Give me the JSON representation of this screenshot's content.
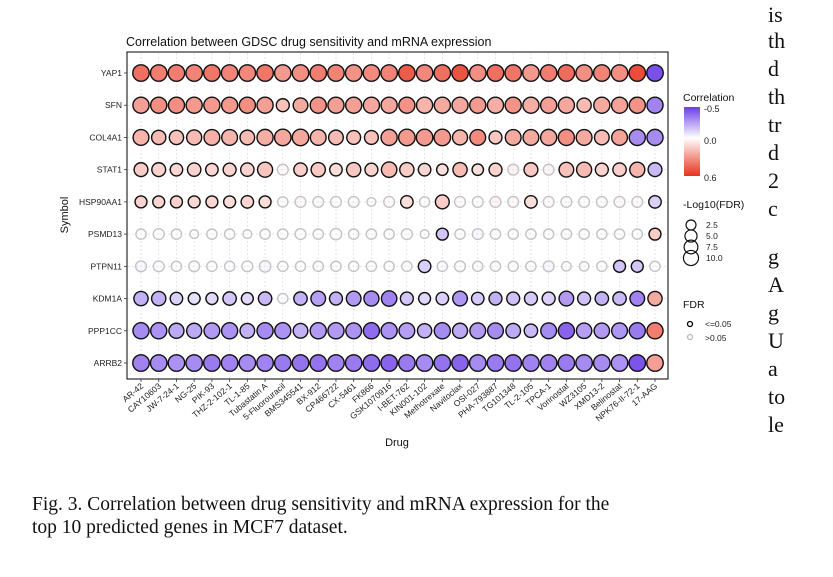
{
  "chart_data": {
    "type": "scatter",
    "subtype": "bubble-grid",
    "title": "Correlation between GDSC drug sensitivity and mRNA expression",
    "xlabel": "Drug",
    "ylabel": "Symbol",
    "x": [
      "AR-42",
      "CAY10603",
      "JW-7-24-1",
      "NG-25",
      "PIK-93",
      "THZ-2-102-1",
      "TL-1-85",
      "Tubastatin A",
      "5-Fluorouracil",
      "BMS345541",
      "BX-912",
      "CP466722",
      "CX-5461",
      "FK866",
      "GSK1070916",
      "I-BET-762",
      "KIN001-102",
      "Methotrexate",
      "Navitoclax",
      "OSI-027",
      "PHA-793887",
      "TG101348",
      "TL-2-105",
      "TPCA-1",
      "Vorinostat",
      "WZ3105",
      "XMD13-2",
      "Belinostat",
      "NPK76-II-72-1",
      "17-AAG"
    ],
    "y": [
      "YAP1",
      "SFN",
      "COL4A1",
      "STAT1",
      "HSP90AA1",
      "PSMD13",
      "PTPN11",
      "KDM1A",
      "PPP1CC",
      "ARRB2"
    ],
    "color_scale": {
      "title": "Correlation",
      "min": -0.5,
      "mid": 0.0,
      "max": 0.6,
      "ticks": [
        "-0.5",
        "0.0",
        "0.6"
      ],
      "low_color": "#6a3de8",
      "mid_color": "#ffffff",
      "high_color": "#e8321c"
    },
    "size_scale": {
      "title": "-Log10(FDR)",
      "ticks": [
        2.5,
        5.0,
        7.5,
        10.0
      ],
      "labels": [
        "2.5",
        "5.0",
        "7.5",
        "10.0"
      ]
    },
    "fdr_legend": {
      "title": "FDR",
      "items": [
        {
          "label": "<=0.05",
          "color": "#000000"
        },
        {
          "label": ">0.05",
          "color": "#bbbbbb"
        }
      ]
    },
    "grid": true,
    "legend_position": "right",
    "series": [
      {
        "name": "YAP1",
        "corr": [
          0.42,
          0.38,
          0.38,
          0.36,
          0.4,
          0.36,
          0.35,
          0.4,
          0.3,
          0.33,
          0.38,
          0.36,
          0.32,
          0.34,
          0.36,
          0.48,
          0.35,
          0.42,
          0.5,
          0.33,
          0.42,
          0.4,
          0.3,
          0.38,
          0.43,
          0.33,
          0.36,
          0.33,
          0.52,
          -0.45
        ],
        "neglog10fdr": [
          9.5,
          9.5,
          9.5,
          9.5,
          9.5,
          9.5,
          9.5,
          9.5,
          9.5,
          9.5,
          9.5,
          9.5,
          9.5,
          9.5,
          9.5,
          9.5,
          9.5,
          9.5,
          9.5,
          9.5,
          9.5,
          9.5,
          9.5,
          9.5,
          9.5,
          9.5,
          9.5,
          9.5,
          9.5,
          9.5
        ],
        "sig": [
          1,
          1,
          1,
          1,
          1,
          1,
          1,
          1,
          1,
          1,
          1,
          1,
          1,
          1,
          1,
          1,
          1,
          1,
          1,
          1,
          1,
          1,
          1,
          1,
          1,
          1,
          1,
          1,
          1,
          1
        ]
      },
      {
        "name": "SFN",
        "corr": [
          0.28,
          0.33,
          0.33,
          0.3,
          0.3,
          0.3,
          0.33,
          0.28,
          0.18,
          0.25,
          0.32,
          0.28,
          0.28,
          0.26,
          0.26,
          0.32,
          0.22,
          0.25,
          0.26,
          0.3,
          0.24,
          0.32,
          0.24,
          0.28,
          0.26,
          0.2,
          0.25,
          0.27,
          0.32,
          -0.32
        ],
        "neglog10fdr": [
          9,
          9,
          9,
          9,
          9,
          9,
          9,
          9,
          5,
          7,
          9,
          9,
          9,
          9,
          9,
          9,
          9,
          9,
          9,
          9,
          9,
          9,
          9,
          9,
          9,
          6.5,
          9,
          9,
          9,
          9
        ],
        "sig": [
          1,
          1,
          1,
          1,
          1,
          1,
          1,
          1,
          1,
          1,
          1,
          1,
          1,
          1,
          1,
          1,
          1,
          1,
          1,
          1,
          1,
          1,
          1,
          1,
          1,
          1,
          1,
          1,
          1,
          1
        ]
      },
      {
        "name": "COL4A1",
        "corr": [
          0.22,
          0.2,
          0.18,
          0.2,
          0.23,
          0.22,
          0.2,
          0.24,
          0.26,
          0.26,
          0.22,
          0.2,
          0.18,
          0.18,
          0.28,
          0.3,
          0.3,
          0.3,
          0.22,
          0.34,
          0.16,
          0.25,
          0.25,
          0.26,
          0.33,
          0.25,
          0.2,
          0.27,
          -0.3,
          -0.3
        ],
        "neglog10fdr": [
          8.5,
          6.5,
          6.5,
          7.5,
          8.5,
          8.5,
          7,
          9,
          9.5,
          9.5,
          8.5,
          7,
          6,
          6,
          9,
          9.5,
          9.5,
          9.5,
          7.5,
          8.5,
          5,
          8.5,
          8.5,
          9,
          9,
          8.5,
          7,
          8.5,
          9,
          9
        ],
        "sig": [
          1,
          1,
          1,
          1,
          1,
          1,
          1,
          1,
          1,
          1,
          1,
          1,
          1,
          1,
          1,
          1,
          1,
          1,
          1,
          1,
          1,
          1,
          1,
          1,
          1,
          1,
          1,
          1,
          1,
          1
        ]
      },
      {
        "name": "STAT1",
        "corr": [
          0.15,
          0.13,
          0.12,
          0.13,
          0.12,
          0.13,
          0.13,
          0.17,
          0.05,
          0.14,
          0.16,
          0.1,
          0.16,
          0.13,
          0.2,
          0.15,
          0.12,
          0.1,
          0.2,
          0.1,
          0.13,
          0.1,
          0.16,
          0.08,
          0.18,
          0.2,
          0.13,
          0.14,
          0.22,
          -0.18
        ],
        "neglog10fdr": [
          6,
          6,
          4.5,
          5.5,
          4.5,
          5,
          5.5,
          7.5,
          3,
          5.5,
          6.5,
          4.5,
          6.5,
          5,
          8,
          6.5,
          4.5,
          3.5,
          6.5,
          3.5,
          5,
          3,
          6,
          3,
          7,
          7.5,
          5,
          5.5,
          7.5,
          6
        ],
        "sig": [
          1,
          1,
          1,
          1,
          1,
          1,
          1,
          1,
          0,
          1,
          1,
          1,
          1,
          1,
          1,
          1,
          1,
          1,
          1,
          1,
          1,
          0,
          1,
          0,
          1,
          1,
          1,
          1,
          1,
          1
        ]
      },
      {
        "name": "HSP90AA1",
        "corr": [
          0.13,
          0.12,
          0.13,
          0.12,
          0.12,
          0.1,
          0.12,
          0.1,
          0.03,
          0.04,
          0.04,
          0.03,
          0.04,
          0.02,
          0.04,
          0.1,
          0.03,
          0.15,
          0.04,
          0.03,
          0.08,
          0.05,
          0.1,
          0.04,
          0.04,
          0.03,
          0.04,
          0.04,
          0.06,
          -0.12
        ],
        "neglog10fdr": [
          4,
          4,
          4,
          4,
          4,
          4,
          4.5,
          4,
          2.5,
          3,
          3,
          3,
          3,
          1.5,
          3,
          4.5,
          2.5,
          6,
          3,
          3,
          3,
          3,
          4.5,
          3,
          3,
          3,
          3,
          3,
          3,
          4.5
        ],
        "sig": [
          1,
          1,
          1,
          1,
          1,
          1,
          1,
          1,
          0,
          0,
          0,
          0,
          0,
          0,
          0,
          1,
          0,
          1,
          0,
          0,
          0,
          0,
          1,
          0,
          0,
          0,
          0,
          0,
          0,
          1
        ]
      },
      {
        "name": "PSMD13",
        "corr": [
          0.02,
          0.02,
          0.02,
          0.01,
          0.02,
          0.02,
          0.02,
          0.02,
          0.01,
          0.02,
          0.03,
          0.02,
          0.02,
          0.02,
          0.02,
          0.03,
          0.02,
          -0.15,
          0.02,
          -0.05,
          0.02,
          0.02,
          0.02,
          0.02,
          0.02,
          0.02,
          0.02,
          0.02,
          0.02,
          0.15
        ],
        "neglog10fdr": [
          2.5,
          3,
          2.5,
          1.5,
          2.5,
          2.5,
          1.5,
          2.5,
          2.5,
          3,
          2.5,
          3.5,
          2.5,
          2.5,
          2.5,
          3,
          1.5,
          4,
          2.5,
          3,
          2.5,
          2.5,
          2.5,
          2.5,
          2.5,
          2.5,
          2.5,
          2.5,
          2.5,
          4
        ],
        "sig": [
          0,
          0,
          0,
          0,
          0,
          0,
          0,
          0,
          0,
          0,
          0,
          0,
          0,
          0,
          0,
          0,
          0,
          1,
          0,
          0,
          0,
          0,
          0,
          0,
          0,
          0,
          0,
          0,
          0,
          1
        ]
      },
      {
        "name": "PTPN11",
        "corr": [
          -0.05,
          -0.02,
          -0.01,
          -0.02,
          -0.02,
          -0.02,
          -0.02,
          -0.06,
          -0.02,
          -0.02,
          -0.02,
          -0.02,
          -0.02,
          -0.02,
          -0.02,
          -0.02,
          -0.12,
          -0.03,
          -0.02,
          -0.02,
          -0.02,
          -0.02,
          -0.02,
          -0.06,
          -0.01,
          -0.02,
          -0.02,
          -0.15,
          -0.15,
          -0.02
        ],
        "neglog10fdr": [
          3,
          3,
          2.5,
          3,
          2.5,
          2.5,
          3,
          3.5,
          2.5,
          2.5,
          2.5,
          2.5,
          2.5,
          2.5,
          2.5,
          2.5,
          4.5,
          2.5,
          3,
          2.5,
          2.5,
          2.5,
          2.5,
          3,
          2,
          2,
          2.5,
          4,
          4,
          2.5
        ],
        "sig": [
          0,
          0,
          0,
          0,
          0,
          0,
          0,
          0,
          0,
          0,
          0,
          0,
          0,
          0,
          0,
          0,
          1,
          0,
          0,
          0,
          0,
          0,
          0,
          0,
          0,
          0,
          0,
          1,
          1,
          0
        ]
      },
      {
        "name": "KDM1A",
        "corr": [
          -0.2,
          -0.2,
          -0.12,
          -0.08,
          -0.1,
          -0.15,
          -0.1,
          -0.18,
          -0.03,
          -0.2,
          -0.25,
          -0.2,
          -0.26,
          -0.3,
          -0.32,
          -0.15,
          -0.1,
          -0.12,
          -0.27,
          -0.14,
          -0.2,
          -0.16,
          -0.14,
          -0.12,
          -0.26,
          -0.16,
          -0.2,
          -0.18,
          -0.32,
          0.25
        ],
        "neglog10fdr": [
          6.5,
          6.5,
          4.5,
          4,
          4,
          5.5,
          4,
          5.5,
          2.5,
          5.5,
          7,
          5,
          7,
          7.5,
          8,
          5,
          4,
          4.5,
          7,
          4.5,
          5,
          5,
          5,
          5,
          7,
          5,
          5.5,
          5.5,
          7,
          6.5
        ],
        "sig": [
          1,
          1,
          1,
          1,
          1,
          1,
          1,
          1,
          0,
          1,
          1,
          1,
          1,
          1,
          1,
          1,
          1,
          1,
          1,
          1,
          1,
          1,
          1,
          1,
          1,
          1,
          1,
          1,
          1,
          1
        ]
      },
      {
        "name": "PPP1CC",
        "corr": [
          -0.3,
          -0.28,
          -0.22,
          -0.22,
          -0.26,
          -0.28,
          -0.2,
          -0.3,
          -0.28,
          -0.2,
          -0.26,
          -0.26,
          -0.28,
          -0.38,
          -0.28,
          -0.25,
          -0.2,
          -0.3,
          -0.22,
          -0.26,
          -0.3,
          -0.22,
          -0.18,
          -0.3,
          -0.4,
          -0.25,
          -0.26,
          -0.27,
          -0.34,
          0.38
        ],
        "neglog10fdr": [
          9,
          9,
          7.5,
          7.5,
          8.5,
          9,
          7,
          9,
          9,
          7,
          9,
          9,
          8.5,
          9,
          9,
          8.5,
          6.5,
          9,
          7.5,
          8.5,
          8.5,
          7,
          5.5,
          8.5,
          9,
          8,
          8,
          8.5,
          9,
          9
        ],
        "sig": [
          1,
          1,
          1,
          1,
          1,
          1,
          1,
          1,
          1,
          1,
          1,
          1,
          1,
          1,
          1,
          1,
          1,
          1,
          1,
          1,
          1,
          1,
          1,
          1,
          1,
          1,
          1,
          1,
          1,
          1
        ]
      },
      {
        "name": "ARRB2",
        "corr": [
          -0.32,
          -0.3,
          -0.28,
          -0.3,
          -0.34,
          -0.32,
          -0.3,
          -0.32,
          -0.34,
          -0.36,
          -0.36,
          -0.32,
          -0.34,
          -0.38,
          -0.4,
          -0.34,
          -0.3,
          -0.36,
          -0.4,
          -0.3,
          -0.34,
          -0.36,
          -0.32,
          -0.32,
          -0.34,
          -0.3,
          -0.3,
          -0.28,
          -0.44,
          0.28
        ],
        "neglog10fdr": [
          9.5,
          9.5,
          9.5,
          9.5,
          9.5,
          9.5,
          9.5,
          9.5,
          9.5,
          9.5,
          9.5,
          9.5,
          9.5,
          9.5,
          9.5,
          9.5,
          9.5,
          9.5,
          9.5,
          9.5,
          9.5,
          9.5,
          9.5,
          9.5,
          9.5,
          9.5,
          9.5,
          9.5,
          9.5,
          9.5
        ],
        "sig": [
          1,
          1,
          1,
          1,
          1,
          1,
          1,
          1,
          1,
          1,
          1,
          1,
          1,
          1,
          1,
          1,
          1,
          1,
          1,
          1,
          1,
          1,
          1,
          1,
          1,
          1,
          1,
          1,
          1,
          1
        ]
      }
    ]
  },
  "caption": {
    "line1": "Fig. 3.  Correlation between drug sensitivity and mRNA expression for the",
    "line2": "top 10 predicted genes in MCF7 dataset."
  },
  "side_column_fragments": [
    "is",
    "th",
    "d",
    "th",
    "tr",
    "d",
    "2",
    "c",
    "g",
    "A",
    "g",
    "U",
    "a",
    "to",
    "le"
  ]
}
